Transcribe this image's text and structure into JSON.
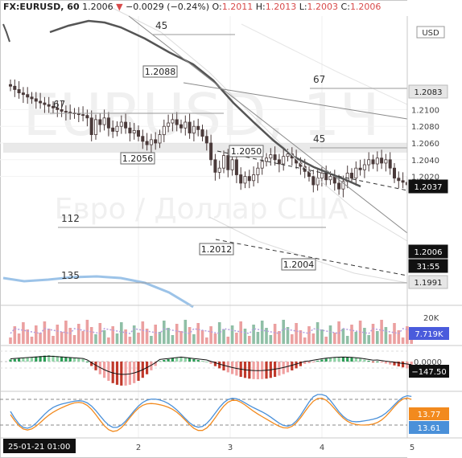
{
  "legend": {
    "symbol": "FX:EURUSD, 60",
    "last": "1.2006",
    "arrow": "▼",
    "change": "−0.0029 (−0.24%)",
    "o_label": "O:",
    "o_value": "1.2011",
    "h_label": "H:",
    "h_value": "1.2013",
    "l_label": "L:",
    "l_value": "1.2003",
    "c_label": "C:",
    "c_value": "1.2006"
  },
  "watermark": {
    "line1": "EURUSD, 1Ч",
    "line2": "Евро / Доллар США"
  },
  "price_axis": {
    "currency": "USD",
    "ticks": [
      "1.2100",
      "1.2080",
      "1.2060",
      "1.2040",
      "1.2020"
    ],
    "markers": [
      {
        "value": "1.2083",
        "kind": "light"
      },
      {
        "value": "1.2037",
        "kind": "dark"
      },
      {
        "value": "1.2006",
        "kind": "dark"
      },
      {
        "value": "31:55",
        "kind": "dark"
      },
      {
        "value": "1.1991",
        "kind": "light"
      }
    ]
  },
  "price_labels": [
    "1.2088",
    "1.2056",
    "1.2050",
    "1.2012",
    "1.2004"
  ],
  "level_labels": [
    "45",
    "67",
    "67",
    "45",
    "112",
    "135"
  ],
  "volume": {
    "axis_label": "20K",
    "badge": "7.719K"
  },
  "macd": {
    "axis_label": "0.0000",
    "badge": "−147.50"
  },
  "stoch": {
    "badge_orange": "13.77",
    "badge_blue": "13.61"
  },
  "time_axis": {
    "first": "25-01-21",
    "first_time": "01:00",
    "ticks": [
      "2",
      "3",
      "4",
      "5"
    ]
  },
  "colors": {
    "up": "#4caf7a",
    "down": "#e2504c",
    "orange": "#f28a1e",
    "blue": "#4a90d9",
    "ma": "#555555",
    "ma_blue": "#9cc3e8"
  }
}
